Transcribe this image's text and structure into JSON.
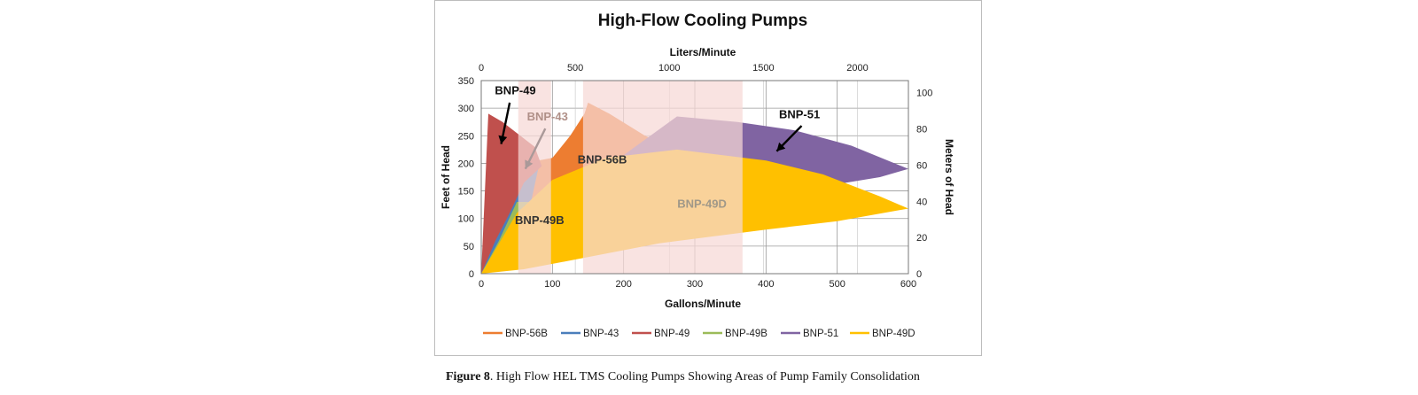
{
  "caption": {
    "label": "Figure 8",
    "text": ". High Flow HEL TMS Cooling Pumps Showing Areas of Pump Family Consolidation"
  },
  "chart_data": {
    "type": "area",
    "title": "High-Flow Cooling Pumps",
    "xlabel": "Gallons/Minute",
    "ylabel": "Feet of Head",
    "x2label": "Liters/Minute",
    "y2label": "Meters of Head",
    "xlim": [
      0,
      600
    ],
    "ylim": [
      0,
      350
    ],
    "x2lim": [
      0,
      2271
    ],
    "y2lim": [
      0,
      106.7
    ],
    "xticks": [
      0,
      100,
      200,
      300,
      400,
      500,
      600
    ],
    "yticks": [
      0,
      50,
      100,
      150,
      200,
      250,
      300,
      350
    ],
    "x2ticks": [
      0,
      500,
      1000,
      1500,
      2000
    ],
    "y2ticks": [
      0,
      20,
      40,
      60,
      80,
      100
    ],
    "grid": true,
    "legend_position": "bottom",
    "series": [
      {
        "name": "BNP-56B",
        "color": "#ED7D31",
        "points": [
          [
            60,
            150
          ],
          [
            65,
            185
          ],
          [
            80,
            205
          ],
          [
            100,
            210
          ],
          [
            125,
            250
          ],
          [
            145,
            290
          ],
          [
            150,
            310
          ],
          [
            180,
            290
          ],
          [
            230,
            250
          ],
          [
            290,
            215
          ],
          [
            280,
            205
          ],
          [
            230,
            185
          ],
          [
            180,
            155
          ],
          [
            140,
            120
          ],
          [
            115,
            98
          ],
          [
            75,
            60
          ]
        ]
      },
      {
        "name": "BNP-43",
        "color": "#4A7EBB",
        "points": [
          [
            0,
            0
          ],
          [
            20,
            160
          ],
          [
            40,
            210
          ],
          [
            55,
            235
          ],
          [
            70,
            230
          ],
          [
            80,
            190
          ],
          [
            70,
            130
          ],
          [
            50,
            100
          ],
          [
            30,
            70
          ]
        ]
      },
      {
        "name": "BNP-49",
        "color": "#C0504D",
        "points": [
          [
            0,
            0
          ],
          [
            10,
            290
          ],
          [
            30,
            275
          ],
          [
            50,
            255
          ],
          [
            75,
            230
          ],
          [
            85,
            195
          ],
          [
            60,
            165
          ],
          [
            40,
            110
          ],
          [
            20,
            60
          ]
        ]
      },
      {
        "name": "BNP-49B",
        "color": "#9BBB59",
        "points": [
          [
            0,
            0
          ],
          [
            25,
            60
          ],
          [
            50,
            130
          ],
          [
            75,
            130
          ],
          [
            100,
            120
          ],
          [
            115,
            95
          ],
          [
            85,
            78
          ],
          [
            55,
            55
          ],
          [
            25,
            25
          ]
        ]
      },
      {
        "name": "BNP-51",
        "color": "#8064A2",
        "points": [
          [
            200,
            215
          ],
          [
            275,
            285
          ],
          [
            360,
            275
          ],
          [
            440,
            260
          ],
          [
            520,
            232
          ],
          [
            600,
            190
          ],
          [
            560,
            175
          ],
          [
            490,
            160
          ],
          [
            420,
            170
          ],
          [
            345,
            190
          ],
          [
            280,
            200
          ]
        ]
      },
      {
        "name": "BNP-49D",
        "color": "#FFC000",
        "points": [
          [
            0,
            0
          ],
          [
            50,
            110
          ],
          [
            100,
            170
          ],
          [
            175,
            210
          ],
          [
            275,
            225
          ],
          [
            400,
            205
          ],
          [
            480,
            180
          ],
          [
            560,
            140
          ],
          [
            600,
            118
          ],
          [
            500,
            95
          ],
          [
            400,
            80
          ],
          [
            250,
            55
          ],
          [
            150,
            30
          ],
          [
            60,
            8
          ]
        ]
      }
    ],
    "consolidation_bands": [
      [
        52,
        98
      ],
      [
        143,
        367
      ]
    ],
    "annotations": [
      {
        "text": "BNP-49",
        "x": 48,
        "y": 325,
        "color": "#111111"
      },
      {
        "text": "BNP-43",
        "x": 93,
        "y": 278,
        "color": "#b09088"
      },
      {
        "text": "BNP-56B",
        "x": 170,
        "y": 200,
        "color": "#333333"
      },
      {
        "text": "BNP-49D",
        "x": 310,
        "y": 120,
        "color": "#a09888"
      },
      {
        "text": "BNP-49B",
        "x": 82,
        "y": 90,
        "color": "#333333"
      },
      {
        "text": "BNP-51",
        "x": 447,
        "y": 282,
        "color": "#111111"
      }
    ],
    "arrows": [
      {
        "from": [
          40,
          310
        ],
        "to": [
          28,
          235
        ],
        "color": "#000000"
      },
      {
        "from": [
          90,
          263
        ],
        "to": [
          62,
          190
        ],
        "color": "#a99"
      },
      {
        "from": [
          450,
          268
        ],
        "to": [
          415,
          222
        ],
        "color": "#000000"
      }
    ]
  }
}
